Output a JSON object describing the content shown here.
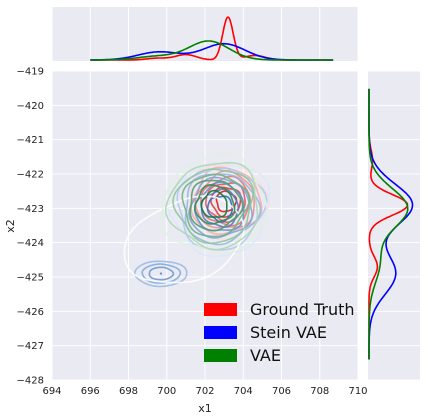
{
  "chart_data": {
    "type": "jointplot-kde",
    "xlabel": "x1",
    "ylabel": "x2",
    "xlim": [
      694,
      710
    ],
    "ylim": [
      -428,
      -419
    ],
    "xticks": [
      "694",
      "696",
      "698",
      "700",
      "702",
      "704",
      "706",
      "708",
      "710"
    ],
    "yticks": [
      "−419",
      "−420",
      "−421",
      "−422",
      "−423",
      "−424",
      "−425",
      "−426",
      "−427",
      "−428"
    ],
    "background": "#eaeaf2",
    "grid": true,
    "legend_position": "lower-right",
    "series": [
      {
        "name": "Ground Truth",
        "color": "#ff0000",
        "center": [
          703.1,
          -422.8
        ],
        "marginal_x": [
          [
            701.0,
            0.12
          ],
          [
            703.2,
            0.95
          ],
          [
            704.6,
            0.1
          ],
          [
            699.5,
            0.04
          ]
        ],
        "marginal_y": [
          [
            -422.9,
            0.55
          ],
          [
            -424.7,
            0.12
          ],
          [
            -421.6,
            0.05
          ]
        ]
      },
      {
        "name": "Stein VAE",
        "color": "#0000ff",
        "center": [
          702.8,
          -423.0
        ],
        "secondary_center": [
          699.7,
          -424.9
        ],
        "marginal_x": [
          [
            699.6,
            0.18
          ],
          [
            703.0,
            0.36
          ]
        ],
        "marginal_y": [
          [
            -422.9,
            0.62
          ],
          [
            -424.9,
            0.38
          ]
        ]
      },
      {
        "name": "VAE",
        "color": "#008000",
        "center": [
          702.5,
          -422.9
        ],
        "marginal_x": [
          [
            702.2,
            0.42
          ],
          [
            699.5,
            0.08
          ]
        ],
        "marginal_y": [
          [
            -423.0,
            0.55
          ],
          [
            -424.6,
            0.15
          ]
        ]
      }
    ]
  }
}
